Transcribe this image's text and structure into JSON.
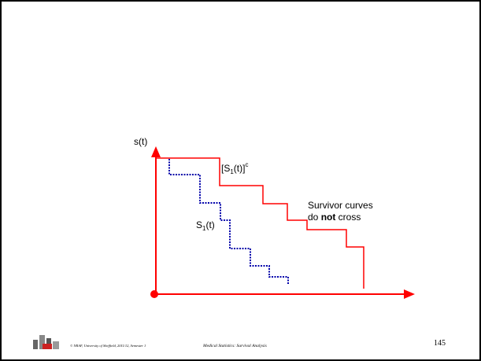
{
  "axis_label": "s(t)",
  "curve_upper_label": [
    "[S",
    "1",
    "(t)]",
    "c"
  ],
  "curve_lower_label": [
    "S",
    "1",
    "(t)"
  ],
  "annotation": {
    "line1": "Survivor curves",
    "line2": [
      "do ",
      "not",
      " cross"
    ]
  },
  "footer": {
    "copyright": "© NRAF, University of Sheffield, 2011/12, Semester 1",
    "course": "Medical Statistics: Survival Analysis",
    "page": "145"
  }
}
